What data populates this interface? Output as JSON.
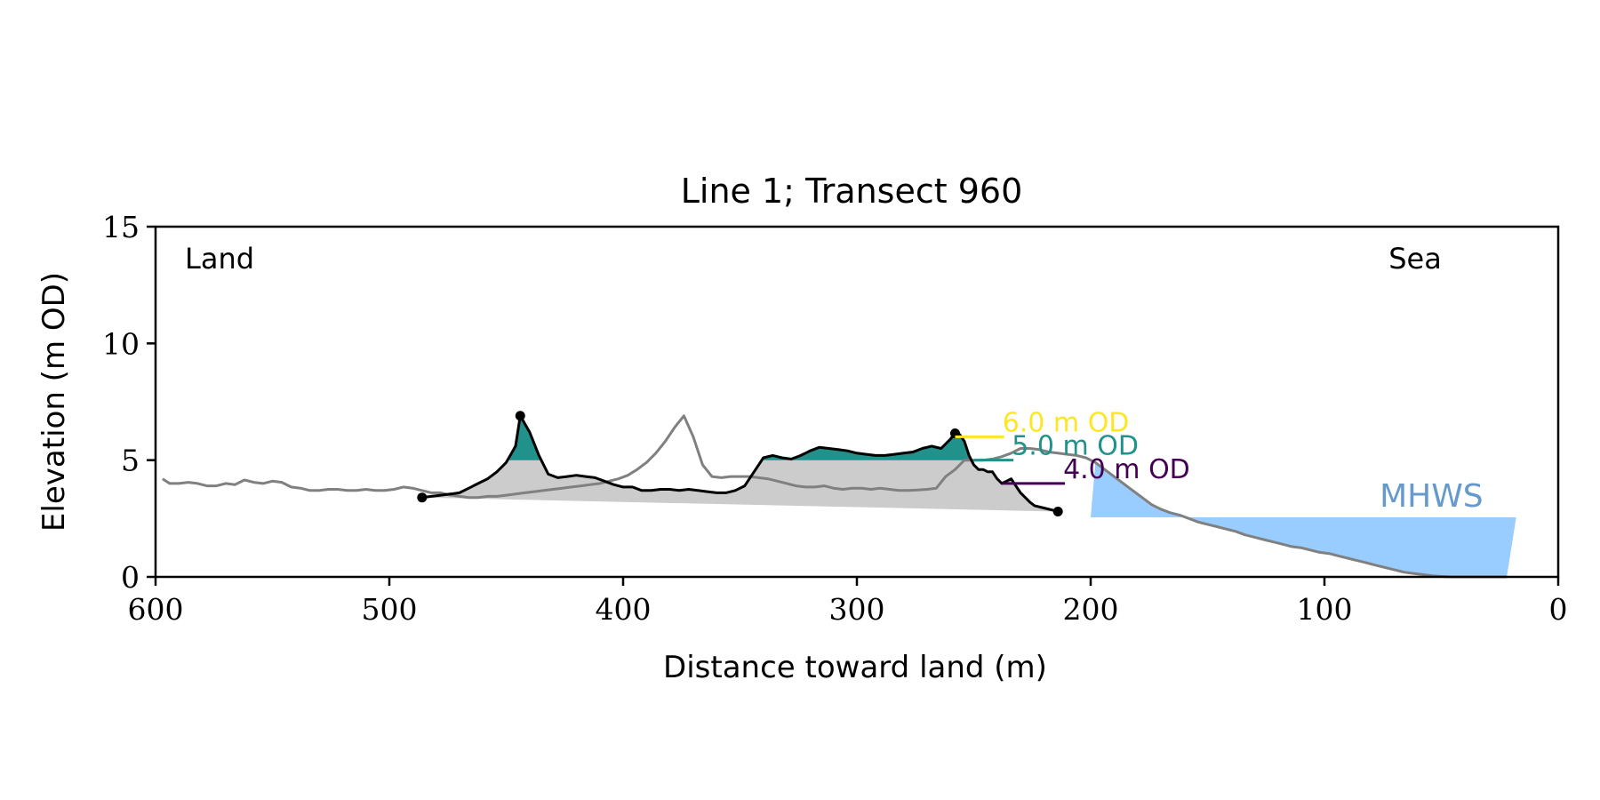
{
  "chart_data": {
    "type": "area",
    "title": "Line 1; Transect 960",
    "xlabel": "Distance toward land (m)",
    "ylabel": "Elevation (m OD)",
    "xlim": [
      600,
      0
    ],
    "ylim": [
      0,
      15
    ],
    "x_reversed": true,
    "xticks": [
      600,
      500,
      400,
      300,
      200,
      100,
      0
    ],
    "yticks": [
      0,
      5,
      10,
      15
    ],
    "grid": false,
    "annotations": {
      "left": "Land",
      "right": "Sea",
      "mhws_label": "MHWS"
    },
    "mhws": {
      "elevation": 2.55,
      "x_from": 200,
      "x_to": 18
    },
    "levels": [
      {
        "label": "6.0 m OD",
        "elevation": 6.0,
        "x_from": 258,
        "x_to": 237,
        "color": "#fde725"
      },
      {
        "label": "5.0 m OD",
        "elevation": 5.0,
        "x_from": 250,
        "x_to": 233,
        "color": "#21918c"
      },
      {
        "label": "4.0 m OD",
        "elevation": 4.0,
        "x_from": 238,
        "x_to": 211,
        "color": "#440154"
      }
    ],
    "key_points": [
      {
        "x": 486,
        "y": 3.4
      },
      {
        "x": 444,
        "y": 6.9
      },
      {
        "x": 258,
        "y": 6.15
      },
      {
        "x": 214,
        "y": 2.8
      }
    ],
    "colors": {
      "full_profile": "#808080",
      "dune_profile": "#000000",
      "dune_fill": "#cccccc",
      "above_5m_fill": "#21918c",
      "mhws_fill": "#99ccff",
      "mhws_text": "#6699cc"
    },
    "series": [
      {
        "points": [
          [
            597,
            4.2
          ],
          [
            594,
            4.0
          ],
          [
            590,
            4.0
          ],
          [
            586,
            4.05
          ],
          [
            582,
            4.0
          ],
          [
            578,
            3.9
          ],
          [
            574,
            3.9
          ],
          [
            570,
            4.0
          ],
          [
            566,
            3.95
          ],
          [
            562,
            4.15
          ],
          [
            558,
            4.05
          ],
          [
            554,
            4.0
          ],
          [
            550,
            4.1
          ],
          [
            546,
            4.05
          ],
          [
            542,
            3.85
          ],
          [
            538,
            3.8
          ],
          [
            534,
            3.7
          ],
          [
            530,
            3.7
          ],
          [
            526,
            3.75
          ],
          [
            522,
            3.75
          ],
          [
            518,
            3.7
          ],
          [
            514,
            3.7
          ],
          [
            510,
            3.75
          ],
          [
            506,
            3.7
          ],
          [
            502,
            3.7
          ],
          [
            498,
            3.75
          ],
          [
            494,
            3.85
          ],
          [
            490,
            3.8
          ],
          [
            486,
            3.7
          ],
          [
            482,
            3.6
          ],
          [
            478,
            3.6
          ],
          [
            474,
            3.5
          ],
          [
            470,
            3.45
          ],
          [
            466,
            3.4
          ],
          [
            462,
            3.4
          ],
          [
            458,
            3.45
          ],
          [
            454,
            3.45
          ],
          [
            450,
            3.5
          ],
          [
            446,
            3.55
          ],
          [
            442,
            3.6
          ],
          [
            438,
            3.65
          ],
          [
            434,
            3.7
          ],
          [
            430,
            3.75
          ],
          [
            426,
            3.8
          ],
          [
            422,
            3.85
          ],
          [
            418,
            3.9
          ],
          [
            414,
            3.95
          ],
          [
            410,
            4.0
          ],
          [
            406,
            4.1
          ],
          [
            402,
            4.2
          ],
          [
            398,
            4.35
          ],
          [
            394,
            4.6
          ],
          [
            390,
            4.9
          ],
          [
            386,
            5.3
          ],
          [
            382,
            5.8
          ],
          [
            378,
            6.4
          ],
          [
            374,
            6.9
          ],
          [
            370,
            6.0
          ],
          [
            366,
            4.8
          ],
          [
            362,
            4.3
          ],
          [
            358,
            4.25
          ],
          [
            354,
            4.3
          ],
          [
            350,
            4.3
          ],
          [
            346,
            4.3
          ],
          [
            342,
            4.25
          ],
          [
            338,
            4.2
          ],
          [
            334,
            4.1
          ],
          [
            330,
            4.0
          ],
          [
            326,
            3.9
          ],
          [
            322,
            3.85
          ],
          [
            318,
            3.85
          ],
          [
            314,
            3.9
          ],
          [
            310,
            3.8
          ],
          [
            306,
            3.75
          ],
          [
            302,
            3.8
          ],
          [
            298,
            3.8
          ],
          [
            294,
            3.75
          ],
          [
            290,
            3.8
          ],
          [
            286,
            3.75
          ],
          [
            282,
            3.7
          ],
          [
            278,
            3.7
          ],
          [
            274,
            3.72
          ],
          [
            270,
            3.75
          ],
          [
            266,
            3.8
          ],
          [
            262,
            4.3
          ],
          [
            258,
            4.6
          ],
          [
            254,
            5.0
          ],
          [
            250,
            5.0
          ],
          [
            246,
            5.0
          ],
          [
            242,
            5.05
          ],
          [
            238,
            5.15
          ],
          [
            234,
            5.3
          ],
          [
            230,
            5.5
          ],
          [
            226,
            5.5
          ],
          [
            222,
            5.45
          ],
          [
            218,
            5.35
          ],
          [
            214,
            5.3
          ],
          [
            210,
            5.25
          ],
          [
            206,
            5.2
          ],
          [
            202,
            5.1
          ],
          [
            198,
            4.9
          ],
          [
            194,
            4.6
          ],
          [
            190,
            4.3
          ],
          [
            186,
            4.0
          ],
          [
            182,
            3.7
          ],
          [
            178,
            3.4
          ],
          [
            174,
            3.1
          ],
          [
            170,
            2.9
          ],
          [
            166,
            2.75
          ],
          [
            162,
            2.65
          ],
          [
            158,
            2.5
          ],
          [
            154,
            2.35
          ],
          [
            150,
            2.25
          ],
          [
            146,
            2.15
          ],
          [
            142,
            2.05
          ],
          [
            138,
            1.95
          ],
          [
            134,
            1.8
          ],
          [
            130,
            1.7
          ],
          [
            126,
            1.6
          ],
          [
            122,
            1.5
          ],
          [
            118,
            1.4
          ],
          [
            114,
            1.3
          ],
          [
            110,
            1.25
          ],
          [
            106,
            1.15
          ],
          [
            102,
            1.05
          ],
          [
            98,
            1.0
          ],
          [
            94,
            0.9
          ],
          [
            90,
            0.8
          ],
          [
            86,
            0.7
          ],
          [
            82,
            0.6
          ],
          [
            78,
            0.5
          ],
          [
            74,
            0.4
          ],
          [
            70,
            0.3
          ],
          [
            66,
            0.2
          ],
          [
            62,
            0.15
          ],
          [
            58,
            0.1
          ],
          [
            54,
            0.05
          ],
          [
            50,
            0.02
          ],
          [
            46,
            0.0
          ],
          [
            42,
            0.0
          ],
          [
            38,
            0.0
          ],
          [
            34,
            0.0
          ],
          [
            30,
            0.0
          ],
          [
            26,
            0.0
          ],
          [
            22,
            0.0
          ]
        ]
      },
      {
        "points": [
          [
            486,
            3.4
          ],
          [
            482,
            3.45
          ],
          [
            478,
            3.5
          ],
          [
            474,
            3.55
          ],
          [
            470,
            3.6
          ],
          [
            466,
            3.8
          ],
          [
            462,
            4.0
          ],
          [
            458,
            4.2
          ],
          [
            454,
            4.5
          ],
          [
            450,
            4.9
          ],
          [
            446,
            5.6
          ],
          [
            444,
            6.9
          ],
          [
            440,
            6.2
          ],
          [
            436,
            5.2
          ],
          [
            432,
            4.4
          ],
          [
            428,
            4.25
          ],
          [
            424,
            4.3
          ],
          [
            420,
            4.35
          ],
          [
            416,
            4.3
          ],
          [
            412,
            4.25
          ],
          [
            408,
            4.1
          ],
          [
            404,
            3.95
          ],
          [
            400,
            3.85
          ],
          [
            396,
            3.85
          ],
          [
            392,
            3.7
          ],
          [
            388,
            3.7
          ],
          [
            384,
            3.75
          ],
          [
            380,
            3.75
          ],
          [
            376,
            3.7
          ],
          [
            372,
            3.75
          ],
          [
            368,
            3.7
          ],
          [
            364,
            3.65
          ],
          [
            360,
            3.6
          ],
          [
            356,
            3.6
          ],
          [
            352,
            3.7
          ],
          [
            348,
            3.9
          ],
          [
            344,
            4.5
          ],
          [
            340,
            5.1
          ],
          [
            336,
            5.2
          ],
          [
            332,
            5.1
          ],
          [
            328,
            5.05
          ],
          [
            324,
            5.2
          ],
          [
            320,
            5.4
          ],
          [
            316,
            5.55
          ],
          [
            312,
            5.5
          ],
          [
            308,
            5.45
          ],
          [
            304,
            5.4
          ],
          [
            300,
            5.3
          ],
          [
            296,
            5.25
          ],
          [
            292,
            5.2
          ],
          [
            288,
            5.2
          ],
          [
            284,
            5.25
          ],
          [
            280,
            5.3
          ],
          [
            276,
            5.35
          ],
          [
            272,
            5.5
          ],
          [
            268,
            5.6
          ],
          [
            264,
            5.5
          ],
          [
            260,
            5.9
          ],
          [
            258,
            6.15
          ],
          [
            256,
            6.1
          ],
          [
            254,
            5.8
          ],
          [
            252,
            5.2
          ],
          [
            250,
            4.8
          ],
          [
            248,
            4.6
          ],
          [
            246,
            4.6
          ],
          [
            244,
            4.5
          ],
          [
            242,
            4.5
          ],
          [
            240,
            4.2
          ],
          [
            238,
            4.0
          ],
          [
            236,
            4.1
          ],
          [
            234,
            4.2
          ],
          [
            232,
            3.9
          ],
          [
            230,
            3.6
          ],
          [
            228,
            3.4
          ],
          [
            226,
            3.2
          ],
          [
            224,
            3.05
          ],
          [
            220,
            2.95
          ],
          [
            216,
            2.85
          ],
          [
            214,
            2.8
          ]
        ]
      }
    ]
  }
}
